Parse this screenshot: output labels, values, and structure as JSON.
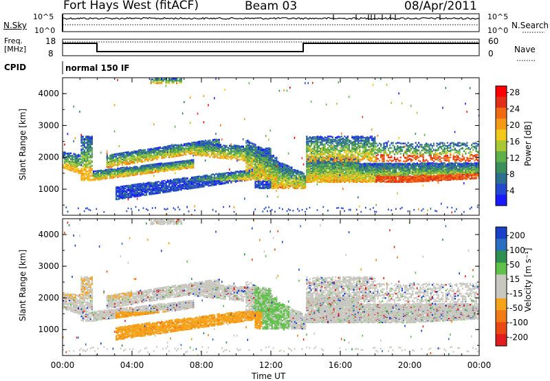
{
  "header": {
    "station": "Fort Hays West (fitACF)",
    "beam": "Beam 03",
    "date": "08/Apr/2011"
  },
  "top_panels": {
    "nsky_label": "N.Sky",
    "nsky_ticks": [
      "10^5",
      "10^0"
    ],
    "nsearch_label": "N.Search",
    "nsearch_ticks": [
      "10^5",
      "10^0"
    ],
    "freq_label_1": "Freq.",
    "freq_label_2": "[MHz]",
    "freq_ticks": [
      "18",
      "8"
    ],
    "nave_label": "Nave",
    "nave_ticks": [
      "60",
      "0"
    ],
    "cpid_label": "CPID",
    "cpid_value": "normal 150 IF"
  },
  "colors": {
    "power_scale": [
      "#1a1aff",
      "#2548d0",
      "#2c6f8f",
      "#3a8f5a",
      "#5fb04a",
      "#a8c934",
      "#f2c81c",
      "#f59a17",
      "#f06a12",
      "#e0301a",
      "#ff0000"
    ],
    "velocity_scale": [
      "#1a3fc8",
      "#2b6fc0",
      "#2f8f4f",
      "#5fc04a",
      "#c8c8c0",
      "#c8c8c0",
      "#f5a41a",
      "#f07a14",
      "#e84a12",
      "#e01e1e"
    ]
  },
  "chart_data": [
    {
      "type": "heatmap",
      "name": "power",
      "ylabel": "Slant Range [km]",
      "xlabel": "Time UT",
      "x_ticks": [
        "00:00",
        "04:00",
        "08:00",
        "12:00",
        "16:00",
        "20:00",
        "00:00"
      ],
      "y_ticks": [
        1000,
        2000,
        3000,
        4000
      ],
      "xlim": [
        "00:00",
        "24:00"
      ],
      "ylim": [
        180,
        4500
      ],
      "colorbar_label": "Power [dB]",
      "colorbar_ticks": [
        4,
        8,
        12,
        16,
        20,
        24,
        28
      ]
    },
    {
      "type": "heatmap",
      "name": "velocity",
      "ylabel": "Slant Range [km]",
      "xlabel": "Time UT",
      "x_ticks": [
        "00:00",
        "04:00",
        "08:00",
        "12:00",
        "16:00",
        "20:00",
        "00:00"
      ],
      "y_ticks": [
        1000,
        2000,
        3000,
        4000
      ],
      "xlim": [
        "00:00",
        "24:00"
      ],
      "ylim": [
        180,
        4500
      ],
      "colorbar_label": "Velocity [m s⁻¹]",
      "colorbar_ticks": [
        200,
        100,
        50,
        15,
        -15,
        -50,
        -100,
        -200
      ]
    }
  ],
  "x_axis_title": "Time UT"
}
